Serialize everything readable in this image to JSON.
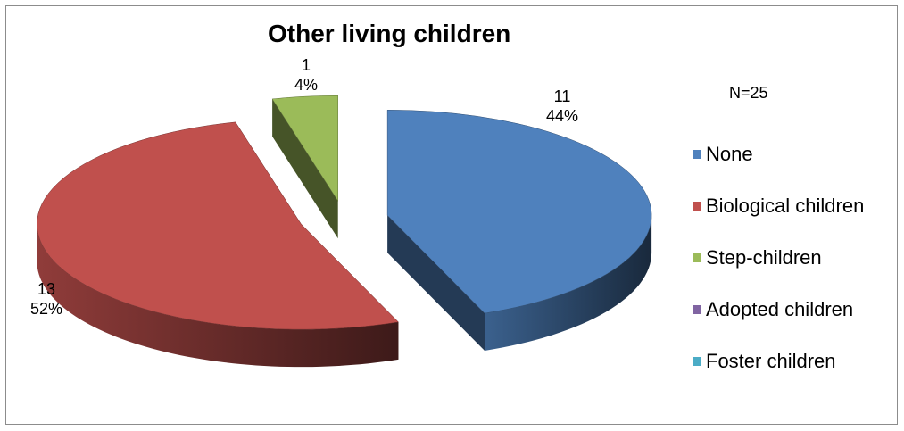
{
  "chart_data": {
    "type": "pie",
    "title": "Other living children",
    "annotation": "N=25",
    "categories": [
      "None",
      "Biological children",
      "Step-children",
      "Adopted children",
      "Foster children"
    ],
    "values": [
      11,
      13,
      1,
      0,
      0
    ],
    "percent_labels": [
      "44%",
      "52%",
      "4%",
      "0%",
      "0%"
    ],
    "colors": [
      "#4f81bd",
      "#c0504d",
      "#9bbb59",
      "#8064a2",
      "#4bacc6"
    ],
    "exploded": true,
    "three_d": true,
    "legend_position": "right"
  },
  "data_labels": [
    {
      "value": "11",
      "percent": "44%"
    },
    {
      "value": "13",
      "percent": "52%"
    },
    {
      "value": "1",
      "percent": "4%"
    }
  ]
}
